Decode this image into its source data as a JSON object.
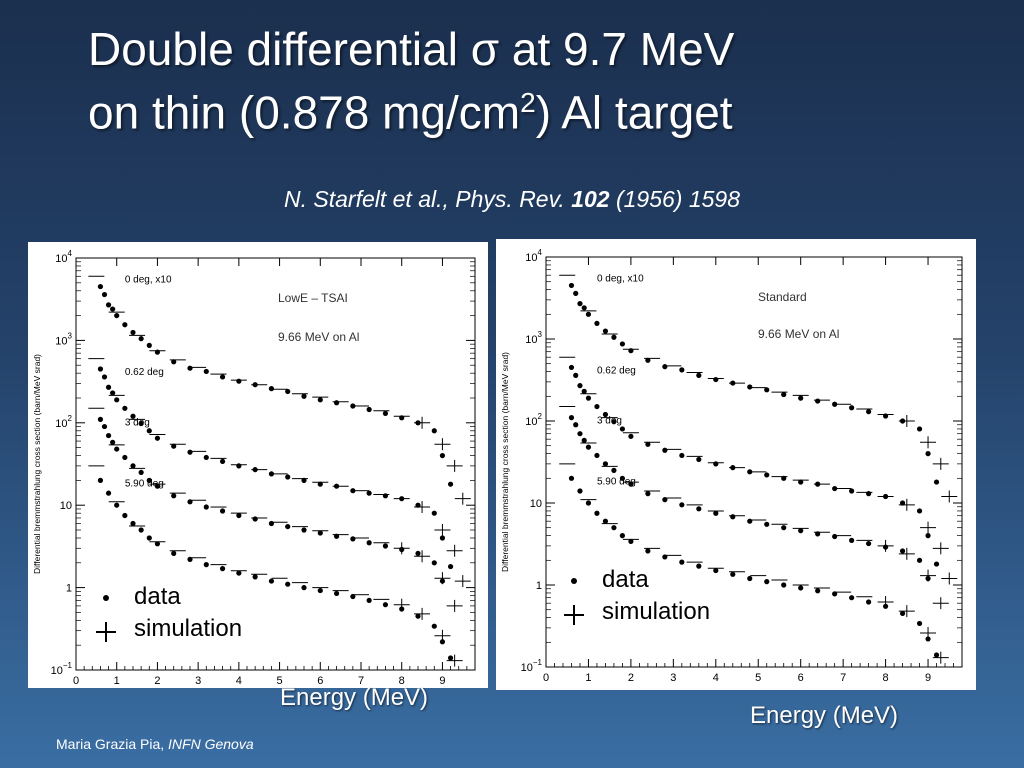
{
  "slide": {
    "title_line1": "Double differential σ at 9.7 MeV",
    "title_line2_pre": "on thin (0.878 mg/cm",
    "title_line2_sup": "2",
    "title_line2_post": ") Al target",
    "citation_pre": "N. Starfelt et al., Phys. Rev. ",
    "citation_vol": "102",
    "citation_post": " (1956) 1598",
    "footer_name": "Maria Grazia Pia, ",
    "footer_org": "INFN Genova",
    "colors": {
      "background_top": "#1b2f4e",
      "background_bottom": "#3a6ea3",
      "text": "#ffffff"
    }
  },
  "chart_data": [
    {
      "type": "scatter",
      "title": "LowE – TSAI",
      "annotation": "9.66 MeV on Al",
      "xlabel": "Energy (MeV)",
      "ylabel": "Differential bremmstrahlung cross section (barn/MeV srad)",
      "xlim": [
        0,
        9.8
      ],
      "ylim": [
        0.1,
        10000
      ],
      "yscale": "log",
      "xticks": [
        "0",
        "1",
        "2",
        "3",
        "4",
        "5",
        "6",
        "7",
        "8",
        "9"
      ],
      "yticks": [
        {
          "base": "10",
          "exp": "−1"
        },
        {
          "base": "1",
          "exp": ""
        },
        {
          "base": "10",
          "exp": ""
        },
        {
          "base": "10",
          "exp": "2"
        },
        {
          "base": "10",
          "exp": "3"
        },
        {
          "base": "10",
          "exp": "4"
        }
      ],
      "legend": {
        "data_label": "data",
        "simulation_label": "simulation"
      },
      "series": [
        {
          "name": "0 deg, x10",
          "data_x": [
            0.6,
            0.7,
            0.8,
            0.9,
            1.0,
            1.2,
            1.4,
            1.6,
            1.8,
            2.0,
            2.4,
            2.8,
            3.2,
            3.6,
            4.0,
            4.4,
            4.8,
            5.2,
            5.6,
            6.0,
            6.4,
            6.8,
            7.2,
            7.6,
            8.0,
            8.4,
            8.8,
            9.0,
            9.2
          ],
          "data_y": [
            4500,
            3600,
            2700,
            2400,
            2000,
            1550,
            1250,
            1050,
            870,
            720,
            550,
            460,
            420,
            360,
            320,
            290,
            260,
            240,
            210,
            190,
            175,
            160,
            145,
            130,
            115,
            100,
            80,
            40,
            18
          ],
          "sim_x": [
            0.5,
            1.0,
            1.5,
            2.0,
            2.5,
            3.0,
            3.5,
            4.0,
            4.5,
            5.0,
            5.5,
            6.0,
            6.5,
            7.0,
            7.5,
            8.0,
            8.5,
            9.0,
            9.3,
            9.5
          ],
          "sim_y": [
            6000,
            2200,
            1150,
            750,
            580,
            470,
            390,
            330,
            290,
            255,
            225,
            205,
            180,
            160,
            140,
            120,
            100,
            55,
            30,
            12
          ]
        },
        {
          "name": "0.62 deg",
          "data_x": [
            0.6,
            0.7,
            0.8,
            0.9,
            1.0,
            1.2,
            1.4,
            1.6,
            1.8,
            2.0,
            2.4,
            2.8,
            3.2,
            3.6,
            4.0,
            4.4,
            4.8,
            5.2,
            5.6,
            6.0,
            6.4,
            6.8,
            7.2,
            7.6,
            8.0,
            8.4,
            8.8,
            9.0,
            9.2
          ],
          "data_y": [
            450,
            360,
            270,
            230,
            190,
            150,
            120,
            98,
            80,
            65,
            52,
            44,
            38,
            34,
            30,
            27,
            24,
            22,
            20,
            18,
            17,
            15,
            14,
            13,
            12,
            10,
            8,
            4,
            1.8
          ],
          "sim_x": [
            0.5,
            1.0,
            1.5,
            2.0,
            2.5,
            3.0,
            3.5,
            4.0,
            4.5,
            5.0,
            5.5,
            6.0,
            6.5,
            7.0,
            7.5,
            8.0,
            8.5,
            9.0,
            9.3,
            9.5
          ],
          "sim_y": [
            600,
            215,
            110,
            72,
            55,
            45,
            37,
            31,
            27,
            24,
            21,
            19,
            17,
            15,
            13.5,
            12,
            9.5,
            5,
            2.8,
            1.2
          ]
        },
        {
          "name": "3 deg",
          "data_x": [
            0.6,
            0.7,
            0.8,
            0.9,
            1.0,
            1.2,
            1.4,
            1.6,
            1.8,
            2.0,
            2.4,
            2.8,
            3.2,
            3.6,
            4.0,
            4.4,
            4.8,
            5.2,
            5.6,
            6.0,
            6.4,
            6.8,
            7.2,
            7.6,
            8.0,
            8.4,
            8.8,
            9.0
          ],
          "data_y": [
            110,
            90,
            70,
            58,
            48,
            38,
            30,
            25,
            20,
            17,
            13,
            11,
            9.5,
            8.5,
            7.5,
            6.8,
            6.0,
            5.5,
            5.0,
            4.6,
            4.2,
            3.9,
            3.5,
            3.2,
            2.9,
            2.6,
            2.0,
            1.2
          ],
          "sim_x": [
            0.5,
            1.0,
            1.5,
            2.0,
            2.5,
            3.0,
            3.5,
            4.0,
            4.5,
            5.0,
            5.5,
            6.0,
            6.5,
            7.0,
            7.5,
            8.0,
            8.5,
            9.0,
            9.3
          ],
          "sim_y": [
            150,
            54,
            28,
            18,
            14,
            11.5,
            9.5,
            8,
            7,
            6.2,
            5.5,
            4.9,
            4.4,
            4.0,
            3.5,
            3.0,
            2.4,
            1.3,
            0.6
          ]
        },
        {
          "name": "5.90 deg",
          "data_x": [
            0.6,
            0.8,
            1.0,
            1.2,
            1.4,
            1.6,
            1.8,
            2.0,
            2.4,
            2.8,
            3.2,
            3.6,
            4.0,
            4.4,
            4.8,
            5.2,
            5.6,
            6.0,
            6.4,
            6.8,
            7.2,
            7.6,
            8.0,
            8.4,
            8.8,
            9.0,
            9.2
          ],
          "data_y": [
            20,
            14,
            10,
            7.5,
            6,
            5,
            4,
            3.4,
            2.6,
            2.2,
            1.9,
            1.7,
            1.5,
            1.35,
            1.2,
            1.1,
            1.0,
            0.92,
            0.85,
            0.78,
            0.7,
            0.62,
            0.55,
            0.45,
            0.34,
            0.22,
            0.14
          ],
          "sim_x": [
            0.5,
            1.0,
            1.5,
            2.0,
            2.5,
            3.0,
            3.5,
            4.0,
            4.5,
            5.0,
            5.5,
            6.0,
            6.5,
            7.0,
            7.5,
            8.0,
            8.5,
            9.0,
            9.3
          ],
          "sim_y": [
            30,
            11,
            5.6,
            3.6,
            2.8,
            2.3,
            1.9,
            1.6,
            1.45,
            1.3,
            1.15,
            1.0,
            0.92,
            0.82,
            0.72,
            0.62,
            0.48,
            0.26,
            0.13
          ]
        }
      ]
    },
    {
      "type": "scatter",
      "title": "Standard",
      "annotation": "9.66 MeV on Al",
      "xlabel": "Energy (MeV)",
      "ylabel": "Differential bremmstrahlung cross section (barn/MeV srad)",
      "xlim": [
        0,
        9.8
      ],
      "ylim": [
        0.1,
        10000
      ],
      "yscale": "log",
      "xticks": [
        "0",
        "1",
        "2",
        "3",
        "4",
        "5",
        "6",
        "7",
        "8",
        "9"
      ],
      "yticks": [
        {
          "base": "10",
          "exp": "−1"
        },
        {
          "base": "1",
          "exp": ""
        },
        {
          "base": "10",
          "exp": ""
        },
        {
          "base": "10",
          "exp": "2"
        },
        {
          "base": "10",
          "exp": "3"
        },
        {
          "base": "10",
          "exp": "4"
        }
      ],
      "legend": {
        "data_label": "data",
        "simulation_label": "simulation"
      },
      "series": [
        {
          "name": "0 deg, x10",
          "data_x": [
            0.6,
            0.7,
            0.8,
            0.9,
            1.0,
            1.2,
            1.4,
            1.6,
            1.8,
            2.0,
            2.4,
            2.8,
            3.2,
            3.6,
            4.0,
            4.4,
            4.8,
            5.2,
            5.6,
            6.0,
            6.4,
            6.8,
            7.2,
            7.6,
            8.0,
            8.4,
            8.8,
            9.0,
            9.2
          ],
          "data_y": [
            4500,
            3600,
            2700,
            2400,
            2000,
            1550,
            1250,
            1050,
            870,
            720,
            550,
            460,
            420,
            360,
            320,
            290,
            260,
            240,
            210,
            190,
            175,
            160,
            145,
            130,
            115,
            100,
            80,
            40,
            18
          ],
          "sim_x": [
            0.5,
            1.0,
            1.5,
            2.0,
            2.5,
            3.0,
            3.5,
            4.0,
            4.5,
            5.0,
            5.5,
            6.0,
            6.5,
            7.0,
            7.5,
            8.0,
            8.5,
            9.0,
            9.3,
            9.5
          ],
          "sim_y": [
            6000,
            2200,
            1150,
            750,
            580,
            470,
            390,
            330,
            290,
            255,
            225,
            205,
            180,
            160,
            140,
            120,
            100,
            55,
            30,
            12
          ]
        },
        {
          "name": "0.62 deg",
          "data_x": [
            0.6,
            0.7,
            0.8,
            0.9,
            1.0,
            1.2,
            1.4,
            1.6,
            1.8,
            2.0,
            2.4,
            2.8,
            3.2,
            3.6,
            4.0,
            4.4,
            4.8,
            5.2,
            5.6,
            6.0,
            6.4,
            6.8,
            7.2,
            7.6,
            8.0,
            8.4,
            8.8,
            9.0,
            9.2
          ],
          "data_y": [
            450,
            360,
            270,
            230,
            190,
            150,
            120,
            98,
            80,
            65,
            52,
            44,
            38,
            34,
            30,
            27,
            24,
            22,
            20,
            18,
            17,
            15,
            14,
            13,
            12,
            10,
            8,
            4,
            1.8
          ],
          "sim_x": [
            0.5,
            1.0,
            1.5,
            2.0,
            2.5,
            3.0,
            3.5,
            4.0,
            4.5,
            5.0,
            5.5,
            6.0,
            6.5,
            7.0,
            7.5,
            8.0,
            8.5,
            9.0,
            9.3,
            9.5
          ],
          "sim_y": [
            600,
            215,
            110,
            72,
            55,
            45,
            37,
            31,
            27,
            24,
            21,
            19,
            17,
            15,
            13.5,
            12,
            9.5,
            5,
            2.8,
            1.2
          ]
        },
        {
          "name": "3 deg",
          "data_x": [
            0.6,
            0.7,
            0.8,
            0.9,
            1.0,
            1.2,
            1.4,
            1.6,
            1.8,
            2.0,
            2.4,
            2.8,
            3.2,
            3.6,
            4.0,
            4.4,
            4.8,
            5.2,
            5.6,
            6.0,
            6.4,
            6.8,
            7.2,
            7.6,
            8.0,
            8.4,
            8.8,
            9.0
          ],
          "data_y": [
            110,
            90,
            70,
            58,
            48,
            38,
            30,
            25,
            20,
            17,
            13,
            11,
            9.5,
            8.5,
            7.5,
            6.8,
            6.0,
            5.5,
            5.0,
            4.6,
            4.2,
            3.9,
            3.5,
            3.2,
            2.9,
            2.6,
            2.0,
            1.2
          ],
          "sim_x": [
            0.5,
            1.0,
            1.5,
            2.0,
            2.5,
            3.0,
            3.5,
            4.0,
            4.5,
            5.0,
            5.5,
            6.0,
            6.5,
            7.0,
            7.5,
            8.0,
            8.5,
            9.0,
            9.3
          ],
          "sim_y": [
            150,
            54,
            28,
            18,
            14,
            11.5,
            9.5,
            8,
            7,
            6.2,
            5.5,
            4.9,
            4.4,
            4.0,
            3.5,
            3.0,
            2.4,
            1.3,
            0.6
          ]
        },
        {
          "name": "5.90 deg",
          "data_x": [
            0.6,
            0.8,
            1.0,
            1.2,
            1.4,
            1.6,
            1.8,
            2.0,
            2.4,
            2.8,
            3.2,
            3.6,
            4.0,
            4.4,
            4.8,
            5.2,
            5.6,
            6.0,
            6.4,
            6.8,
            7.2,
            7.6,
            8.0,
            8.4,
            8.8,
            9.0,
            9.2
          ],
          "data_y": [
            20,
            14,
            10,
            7.5,
            6,
            5,
            4,
            3.4,
            2.6,
            2.2,
            1.9,
            1.7,
            1.5,
            1.35,
            1.2,
            1.1,
            1.0,
            0.92,
            0.85,
            0.78,
            0.7,
            0.62,
            0.55,
            0.45,
            0.34,
            0.22,
            0.14
          ],
          "sim_x": [
            0.5,
            1.0,
            1.5,
            2.0,
            2.5,
            3.0,
            3.5,
            4.0,
            4.5,
            5.0,
            5.5,
            6.0,
            6.5,
            7.0,
            7.5,
            8.0,
            8.5,
            9.0,
            9.3
          ],
          "sim_y": [
            30,
            11,
            5.6,
            3.6,
            2.8,
            2.3,
            1.9,
            1.6,
            1.45,
            1.3,
            1.15,
            1.0,
            0.92,
            0.82,
            0.72,
            0.62,
            0.48,
            0.26,
            0.13
          ]
        }
      ]
    }
  ]
}
